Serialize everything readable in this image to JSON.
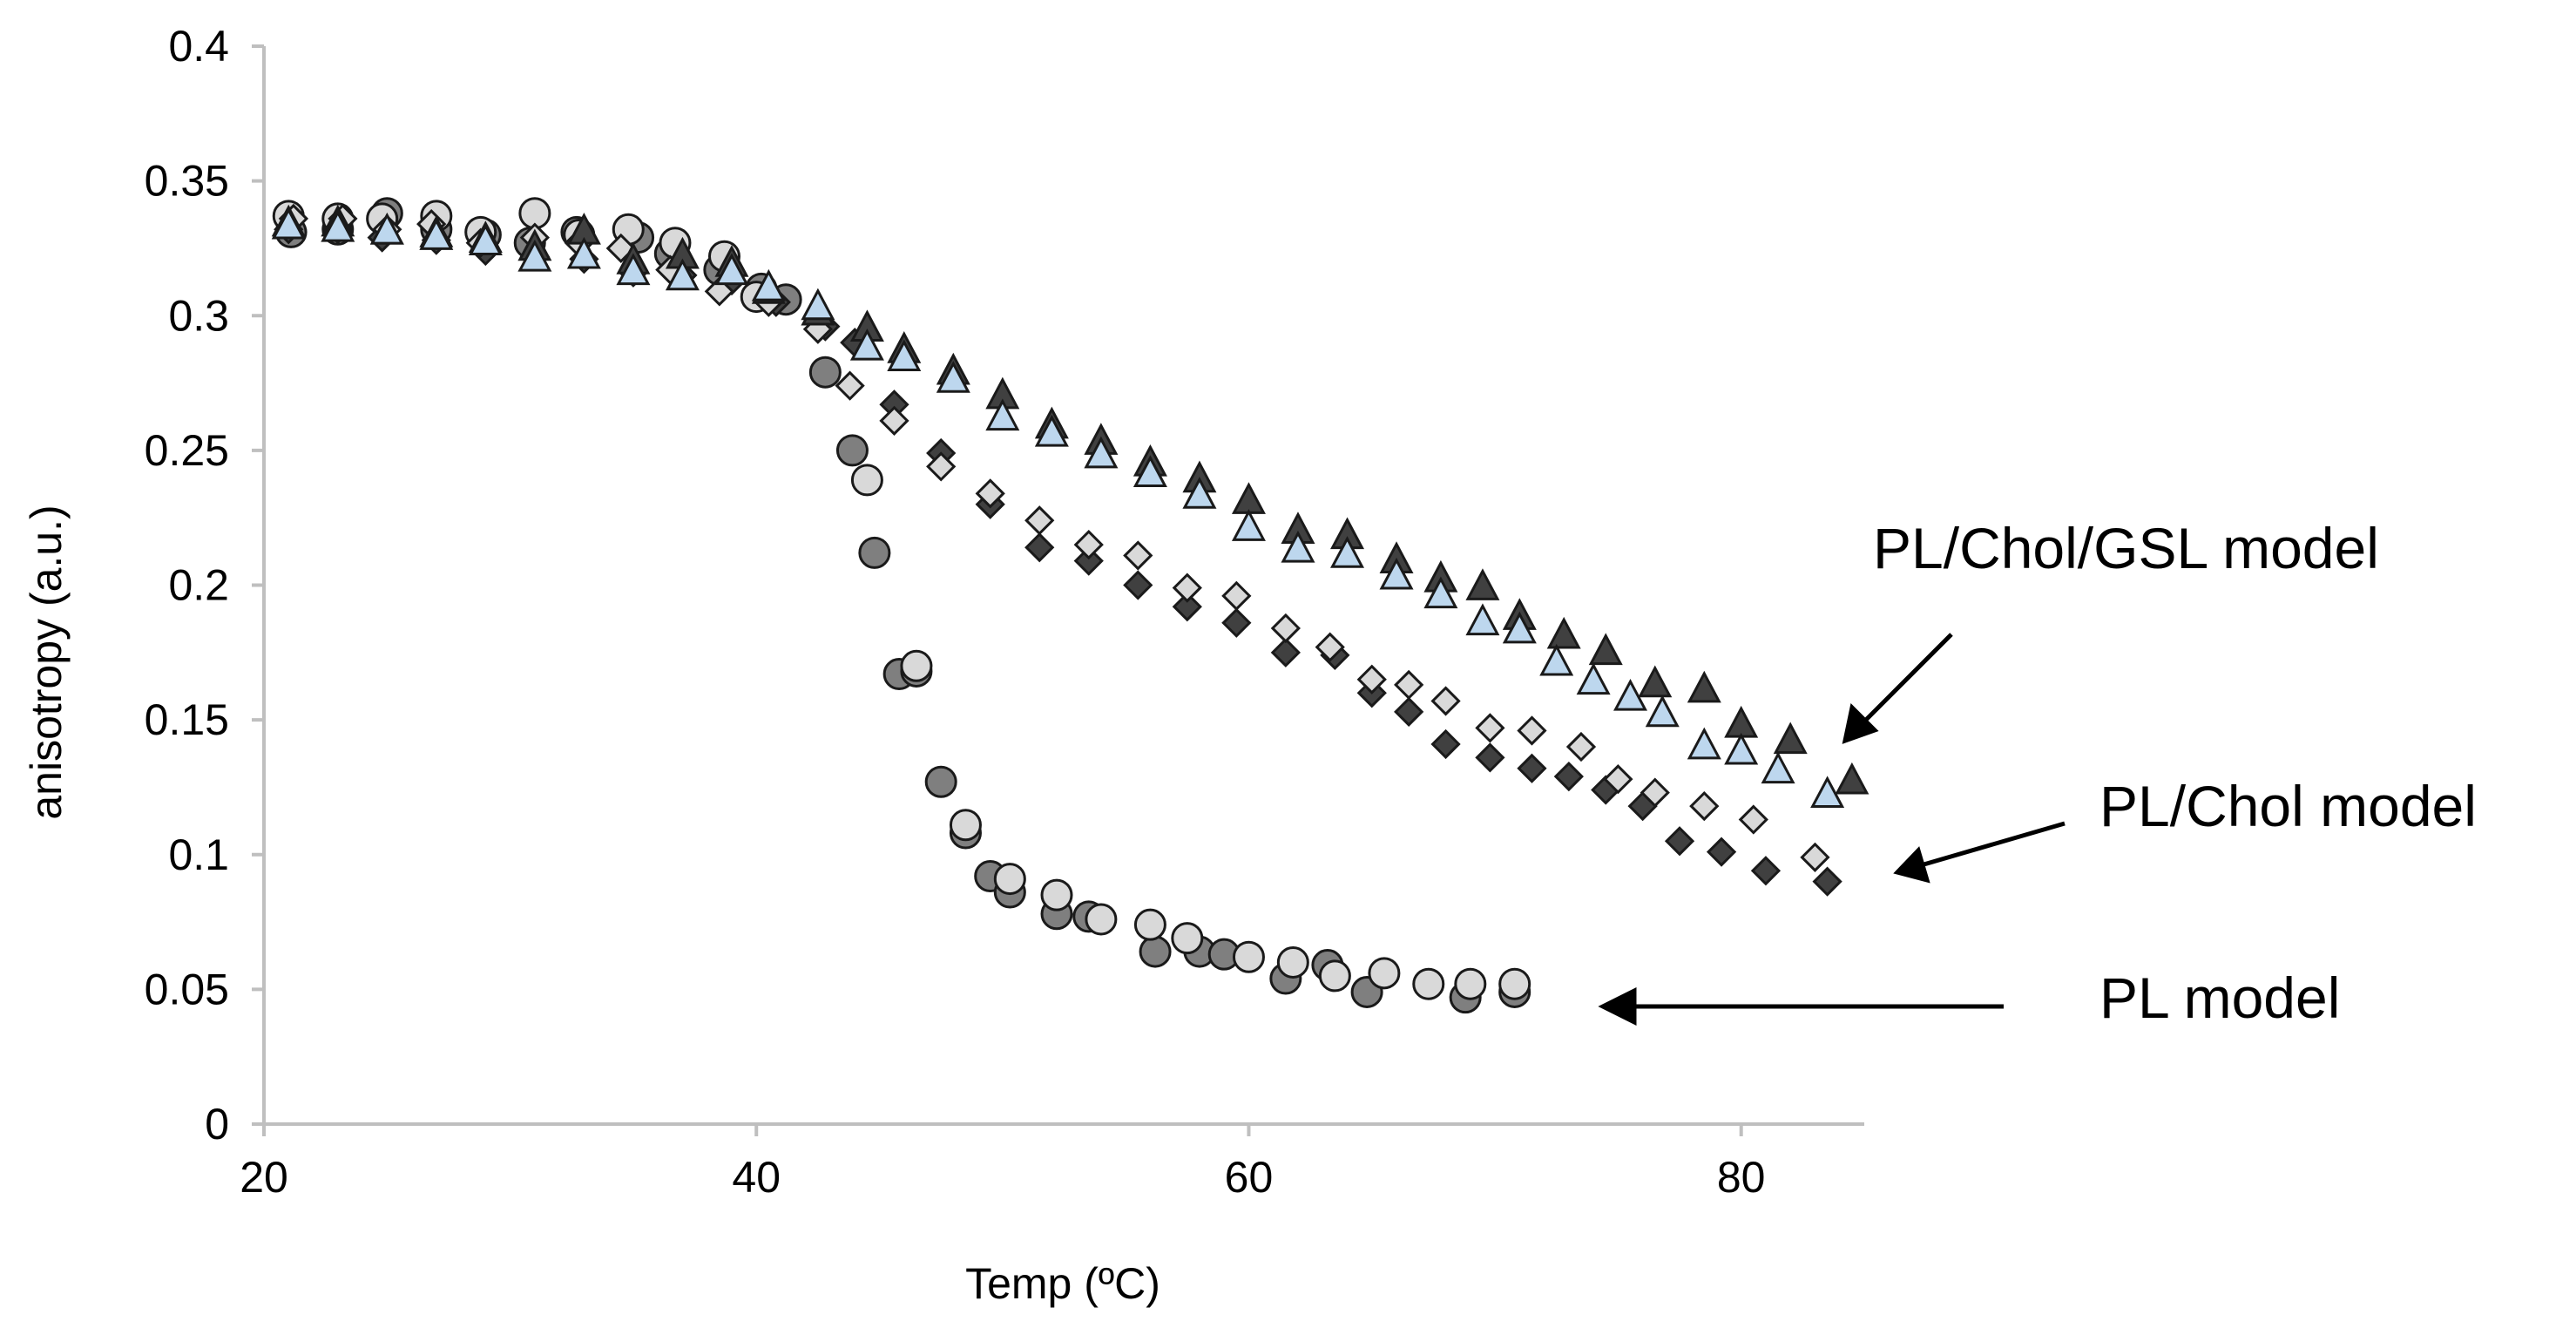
{
  "chart_data": {
    "type": "scatter",
    "title": "",
    "xlabel": "Temp (ºC)",
    "ylabel": "anisotropy (a.u.)",
    "xlim": [
      20,
      85
    ],
    "ylim": [
      0,
      0.4
    ],
    "xticks": [
      20,
      40,
      60,
      80
    ],
    "xtick_labels": [
      "20",
      "40",
      "60",
      "80"
    ],
    "yticks": [
      0,
      0.05,
      0.1,
      0.15,
      0.2,
      0.25,
      0.3,
      0.35,
      0.4
    ],
    "ytick_labels": [
      "0",
      "0.05",
      "0.1",
      "0.15",
      "0.2",
      "0.25",
      "0.3",
      "0.35",
      "0.4"
    ],
    "grid": false,
    "series": [
      {
        "name": "PL model (dark circles)",
        "marker": "circle",
        "fill": "#7f7f7f",
        "x": [
          21.1,
          23.0,
          25.0,
          27.0,
          29.0,
          30.8,
          32.7,
          35.2,
          36.5,
          38.5,
          40.2,
          41.2,
          42.8,
          43.9,
          44.8,
          45.8,
          46.5,
          47.5,
          48.5,
          49.5,
          50.3,
          52.2,
          53.5,
          56.2,
          58.0,
          59.0,
          61.5,
          63.2,
          64.8,
          68.8,
          70.8
        ],
        "y": [
          0.331,
          0.332,
          0.338,
          0.332,
          0.33,
          0.327,
          0.331,
          0.329,
          0.323,
          0.317,
          0.31,
          0.306,
          0.279,
          0.25,
          0.212,
          0.167,
          0.168,
          0.127,
          0.108,
          0.092,
          0.086,
          0.078,
          0.077,
          0.064,
          0.064,
          0.063,
          0.054,
          0.059,
          0.049,
          0.047,
          0.049
        ]
      },
      {
        "name": "PL model (light circles)",
        "marker": "circle",
        "fill": "#d9d9d9",
        "x": [
          21.0,
          23.0,
          24.8,
          27.0,
          28.8,
          31.0,
          32.8,
          34.8,
          36.7,
          38.7,
          40.0,
          44.5,
          46.5,
          48.5,
          50.3,
          52.2,
          54.0,
          56.0,
          57.5,
          60.0,
          61.8,
          63.5,
          65.5,
          67.3,
          69.0,
          70.8
        ],
        "y": [
          0.337,
          0.336,
          0.336,
          0.337,
          0.331,
          0.338,
          0.33,
          0.332,
          0.327,
          0.322,
          0.307,
          0.239,
          0.17,
          0.111,
          0.091,
          0.085,
          0.076,
          0.074,
          0.069,
          0.062,
          0.06,
          0.055,
          0.056,
          0.052,
          0.052,
          0.052
        ]
      },
      {
        "name": "PL/Chol model (dark diamonds)",
        "marker": "diamond",
        "fill": "#404040",
        "x": [
          21.0,
          23.0,
          24.8,
          27.0,
          29.0,
          31.0,
          33.0,
          35.0,
          37.0,
          39.0,
          40.8,
          42.8,
          44.0,
          45.6,
          47.5,
          49.5,
          51.5,
          53.5,
          55.5,
          57.5,
          59.5,
          61.5,
          63.5,
          65.0,
          66.5,
          68.0,
          69.8,
          71.5,
          73.0,
          74.5,
          76.0,
          77.5,
          79.2,
          81.0,
          83.5
        ],
        "y": [
          0.332,
          0.332,
          0.329,
          0.328,
          0.324,
          0.322,
          0.321,
          0.316,
          0.315,
          0.313,
          0.305,
          0.296,
          0.29,
          0.267,
          0.249,
          0.23,
          0.214,
          0.209,
          0.2,
          0.192,
          0.186,
          0.175,
          0.174,
          0.16,
          0.153,
          0.141,
          0.136,
          0.132,
          0.129,
          0.124,
          0.118,
          0.105,
          0.101,
          0.094,
          0.09
        ]
      },
      {
        "name": "PL/Chol model (light diamonds)",
        "marker": "diamond",
        "fill": "#d9d9d9",
        "x": [
          21.2,
          23.2,
          25.0,
          26.8,
          28.8,
          31.0,
          32.8,
          34.5,
          36.5,
          38.5,
          40.5,
          42.5,
          43.8,
          45.6,
          47.5,
          49.5,
          51.5,
          53.5,
          55.5,
          57.5,
          59.5,
          61.5,
          63.3,
          65.0,
          66.5,
          68.0,
          69.8,
          71.5,
          73.5,
          75.0,
          76.5,
          78.5,
          80.5,
          83.0
        ],
        "y": [
          0.336,
          0.336,
          0.332,
          0.334,
          0.327,
          0.329,
          0.327,
          0.325,
          0.317,
          0.309,
          0.305,
          0.295,
          0.274,
          0.261,
          0.244,
          0.234,
          0.224,
          0.215,
          0.211,
          0.199,
          0.196,
          0.184,
          0.177,
          0.165,
          0.163,
          0.157,
          0.147,
          0.146,
          0.14,
          0.128,
          0.123,
          0.118,
          0.113,
          0.099
        ]
      },
      {
        "name": "PL/Chol/GSL model (dark triangles)",
        "marker": "triangle",
        "fill": "#404040",
        "x": [
          21.0,
          23.0,
          25.0,
          27.0,
          29.0,
          31.0,
          33.0,
          35.0,
          37.0,
          39.0,
          40.5,
          42.5,
          44.5,
          46.0,
          48.0,
          50.0,
          52.0,
          54.0,
          56.0,
          58.0,
          60.0,
          62.0,
          64.0,
          66.0,
          67.8,
          69.5,
          71.0,
          72.8,
          74.5,
          76.5,
          78.5,
          80.0,
          82.0,
          84.5
        ],
        "y": [
          0.334,
          0.334,
          0.331,
          0.33,
          0.328,
          0.325,
          0.331,
          0.32,
          0.322,
          0.319,
          0.309,
          0.301,
          0.295,
          0.287,
          0.279,
          0.27,
          0.259,
          0.253,
          0.245,
          0.239,
          0.231,
          0.22,
          0.218,
          0.209,
          0.202,
          0.199,
          0.188,
          0.181,
          0.175,
          0.163,
          0.161,
          0.148,
          0.142,
          0.127
        ]
      },
      {
        "name": "PL/Chol/GSL model (light blue triangles)",
        "marker": "triangle",
        "fill": "#bdd7ee",
        "x": [
          21.0,
          23.0,
          25.0,
          27.0,
          29.0,
          31.0,
          33.0,
          35.0,
          37.0,
          39.0,
          40.5,
          42.5,
          44.5,
          46.0,
          48.0,
          50.0,
          52.0,
          54.0,
          56.0,
          58.0,
          60.0,
          62.0,
          64.0,
          66.0,
          67.8,
          69.5,
          71.0,
          72.5,
          74.0,
          75.5,
          76.8,
          78.5,
          80.0,
          81.5,
          83.5
        ],
        "y": [
          0.333,
          0.332,
          0.331,
          0.329,
          0.327,
          0.321,
          0.322,
          0.316,
          0.314,
          0.316,
          0.31,
          0.303,
          0.288,
          0.284,
          0.276,
          0.262,
          0.256,
          0.248,
          0.241,
          0.233,
          0.221,
          0.213,
          0.211,
          0.203,
          0.196,
          0.186,
          0.183,
          0.171,
          0.164,
          0.158,
          0.152,
          0.14,
          0.138,
          0.131,
          0.122
        ]
      }
    ],
    "annotations": [
      {
        "text": "PL/Chol/GSL model",
        "points_to_series": "triangles"
      },
      {
        "text": "PL/Chol model",
        "points_to_series": "diamonds"
      },
      {
        "text": "PL model",
        "points_to_series": "circles"
      }
    ]
  }
}
